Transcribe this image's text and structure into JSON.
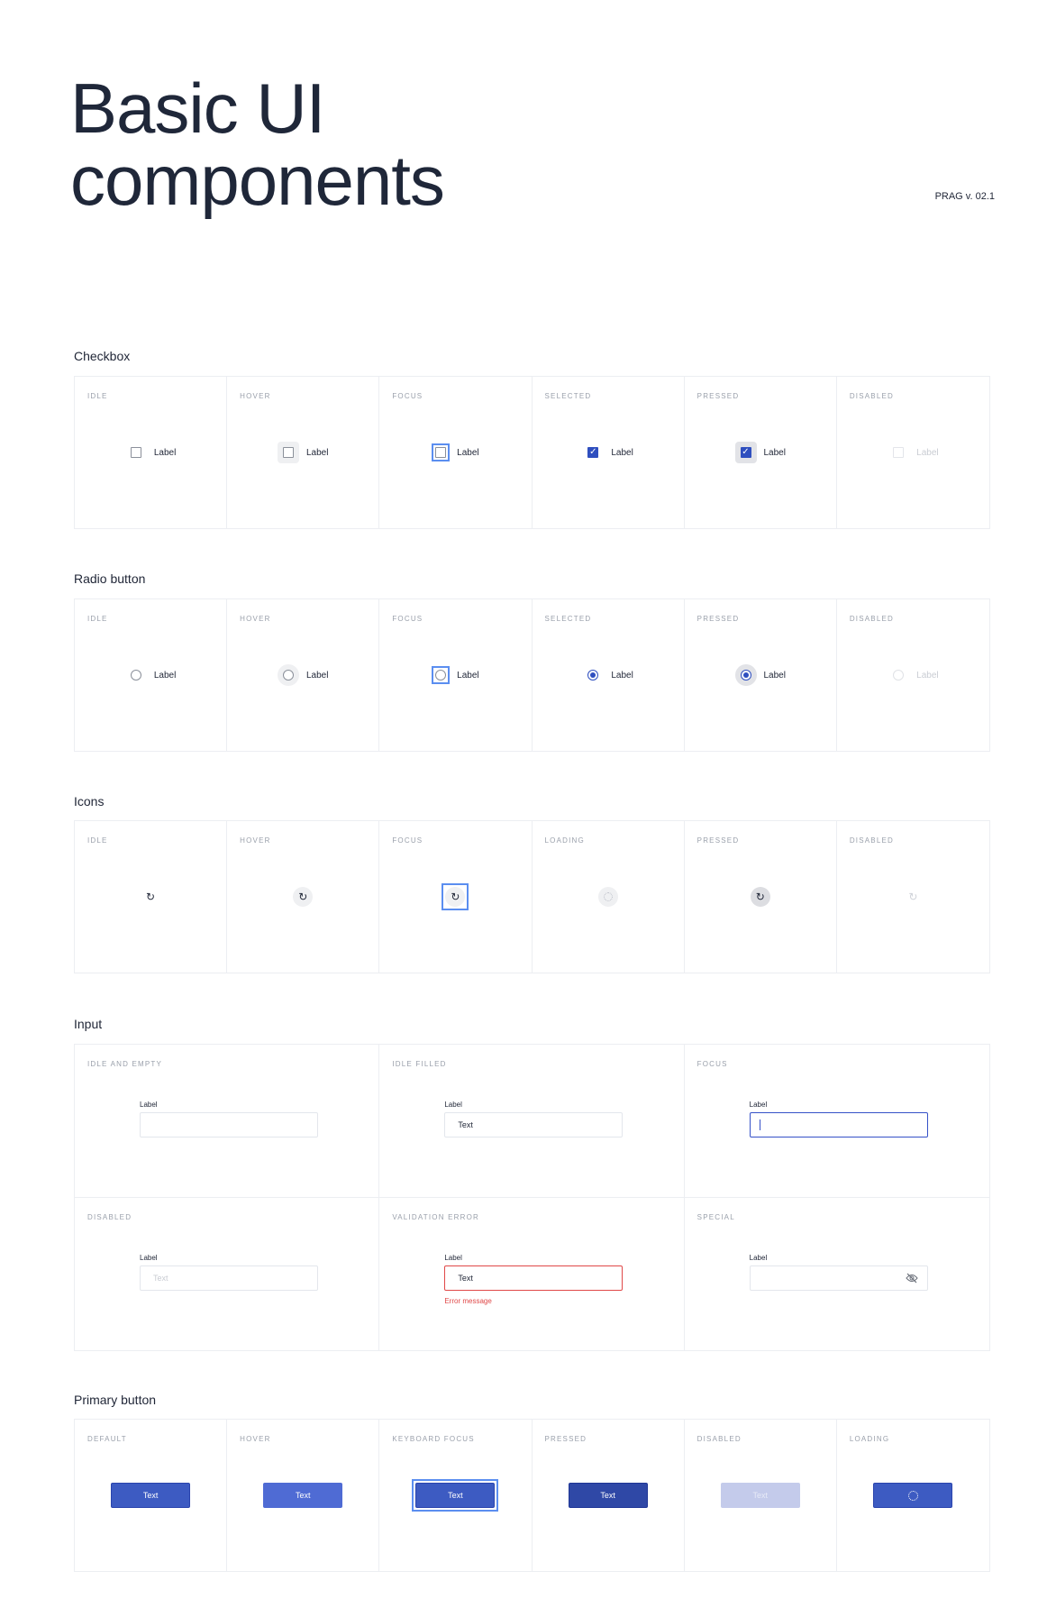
{
  "header": {
    "title_line1": "Basic UI",
    "title_line2": "components",
    "version": "PRAG v. 02.1"
  },
  "colors": {
    "primary": "#3d5bc2",
    "primary_hover": "#4f6bd4",
    "primary_pressed": "#2f48a6",
    "primary_disabled": "#c4cbeb",
    "focus_ring": "#5b8ef0",
    "error": "#e04848",
    "text": "#1f2536"
  },
  "checkbox": {
    "title": "Checkbox",
    "states": [
      "Idle",
      "Hover",
      "Focus",
      "Selected",
      "Pressed",
      "Disabled"
    ],
    "label": "Label"
  },
  "radio": {
    "title": "Radio button",
    "states": [
      "Idle",
      "Hover",
      "Focus",
      "Selected",
      "Pressed",
      "Disabled"
    ],
    "label": "Label"
  },
  "icons": {
    "title": "Icons",
    "states": [
      "Idle",
      "Hover",
      "Focus",
      "Loading",
      "Pressed",
      "Disabled"
    ],
    "icon": "refresh-icon"
  },
  "input": {
    "title": "Input",
    "states": [
      "Idle and empty",
      "Idle filled",
      "Focus",
      "Disabled",
      "Validation error",
      "Special"
    ],
    "label": "Label",
    "filled_value": "Text",
    "disabled_placeholder": "Text",
    "error_value": "Text",
    "error_message": "Error message",
    "special_icon": "eye-off-icon"
  },
  "primary_button": {
    "title": "Primary button",
    "states": [
      "Default",
      "Hover",
      "Keyboard focus",
      "Pressed",
      "Disabled",
      "Loading"
    ],
    "text": "Text"
  }
}
